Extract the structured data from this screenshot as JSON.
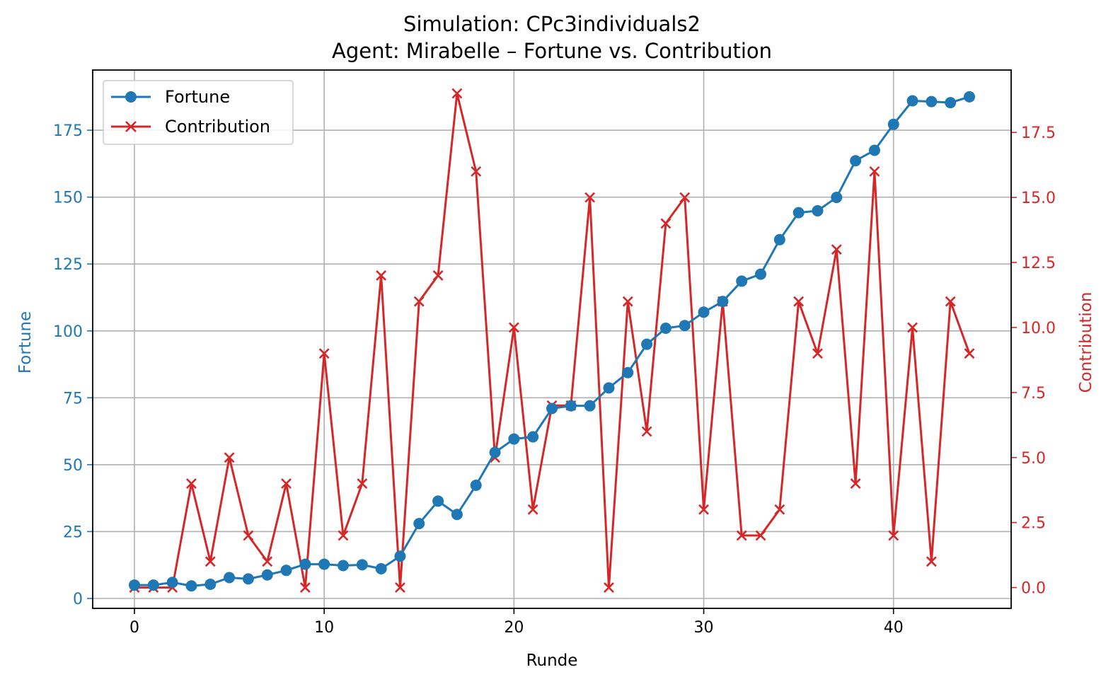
{
  "chart_data": {
    "type": "line",
    "title": "Simulation: CPc3individuals2",
    "subtitle": "Agent: Mirabelle – Fortune vs. Contribution",
    "xlabel": "Runde",
    "ylabel_left": "Fortune",
    "ylabel_right": "Contribution",
    "xlim": [
      -2.2,
      46.2
    ],
    "ylim_left": [
      -3.7,
      197.5
    ],
    "ylim_right": [
      -0.8,
      19.9
    ],
    "xticks": [
      0,
      10,
      20,
      30,
      40
    ],
    "yticks_left": [
      0,
      25,
      50,
      75,
      100,
      125,
      150,
      175
    ],
    "yticks_right": [
      0.0,
      2.5,
      5.0,
      7.5,
      10.0,
      12.5,
      15.0,
      17.5
    ],
    "xtick_labels": [
      "0",
      "10",
      "20",
      "30",
      "40"
    ],
    "ytick_labels_left": [
      "0",
      "25",
      "50",
      "75",
      "100",
      "125",
      "150",
      "175"
    ],
    "ytick_labels_right": [
      "0.0",
      "2.5",
      "5.0",
      "7.5",
      "10.0",
      "12.5",
      "15.0",
      "17.5"
    ],
    "grid": true,
    "legend_position": "top-left",
    "x": [
      0,
      1,
      2,
      3,
      4,
      5,
      6,
      7,
      8,
      9,
      10,
      11,
      12,
      13,
      14,
      15,
      16,
      17,
      18,
      19,
      20,
      21,
      22,
      23,
      24,
      25,
      26,
      27,
      28,
      29,
      30,
      31,
      32,
      33,
      34,
      35,
      36,
      37,
      38,
      39,
      40,
      41,
      42,
      43,
      44
    ],
    "series": [
      {
        "name": "Fortune",
        "axis": "left",
        "color": "#1f77b4",
        "marker": "circle",
        "values": [
          5,
          5,
          6,
          4.7,
          5.3,
          7.8,
          7.3,
          8.8,
          10.5,
          12.8,
          12.8,
          12.3,
          12.6,
          11.1,
          15.8,
          28,
          36.4,
          31.4,
          42.3,
          54.6,
          59.6,
          60.4,
          71,
          72,
          72,
          78.7,
          84.4,
          95,
          101,
          102,
          107,
          111,
          118.6,
          121.2,
          134.1,
          144.2,
          144.9,
          149.9,
          163.6,
          167.5,
          177.2,
          186,
          185.7,
          185.3,
          187.5
        ]
      },
      {
        "name": "Contribution",
        "axis": "right",
        "color": "#d62728",
        "marker": "x",
        "values": [
          0,
          0,
          0,
          4,
          1,
          5,
          2,
          1,
          4,
          0,
          9,
          2,
          4,
          12,
          0,
          11,
          12,
          19,
          16,
          5,
          10,
          3,
          7,
          7,
          15,
          0,
          11,
          6,
          14,
          15,
          3,
          11,
          2,
          2,
          3,
          11,
          9,
          13,
          4,
          16,
          2,
          10,
          1,
          11,
          9
        ]
      }
    ]
  }
}
